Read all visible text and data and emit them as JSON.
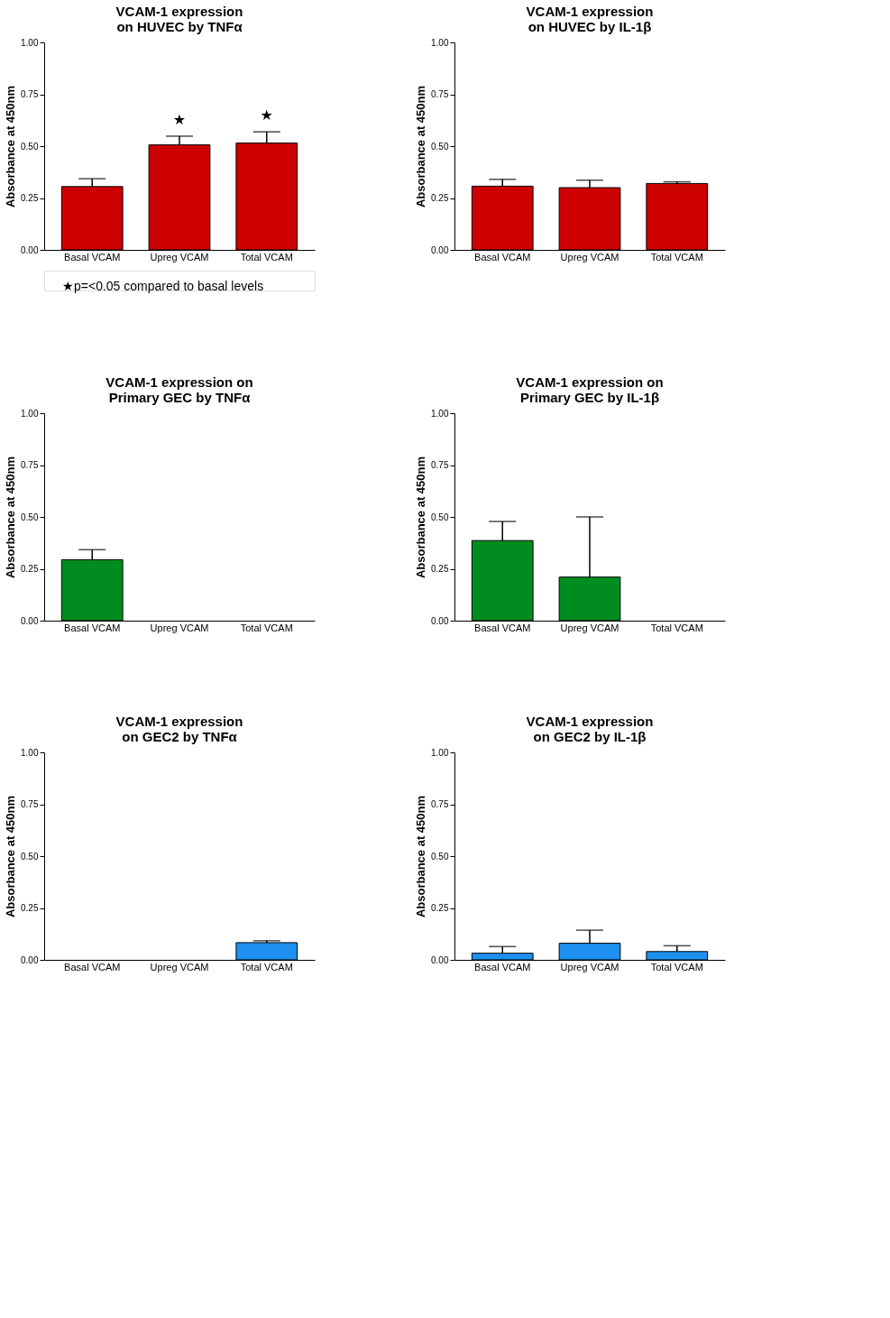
{
  "chart_data": [
    {
      "type": "bar",
      "title": "VCAM-1 expression on HUVEC by TNFα",
      "ylabel": "Absorbance at 450nm",
      "categories": [
        "Basal VCAM",
        "Upreg VCAM",
        "Total VCAM"
      ],
      "values": [
        0.305,
        0.506,
        0.515
      ],
      "errors": [
        [
          0.305,
          0.343
        ],
        [
          0.506,
          0.548
        ],
        [
          0.515,
          0.569
        ]
      ],
      "color": "#cc0000",
      "ylim": [
        0,
        1
      ],
      "yticks": [
        {
          "value": 0,
          "label": "0.00"
        },
        {
          "value": 0.25,
          "label": "0.25"
        },
        {
          "value": 0.5,
          "label": "0.50"
        },
        {
          "value": 0.75,
          "label": "0.75"
        },
        {
          "value": 1,
          "label": "1.00"
        }
      ],
      "grid": false,
      "annotations": [
        "★",
        "★",
        "★p=<0.05 compared to basal levels"
      ]
    },
    {
      "type": "bar",
      "title": "VCAM-1 expression on HUVEC by IL-1β",
      "ylabel": "Absorbance at 450nm",
      "categories": [
        "Basal VCAM",
        "Upreg VCAM",
        "Total VCAM"
      ],
      "values": [
        0.307,
        0.3,
        0.32
      ],
      "errors": [
        [
          0.307,
          0.34
        ],
        [
          0.3,
          0.336
        ],
        [
          0.32,
          0.328
        ]
      ],
      "color": "#cc0000",
      "ylim": [
        0,
        1
      ],
      "yticks": [
        {
          "value": 0,
          "label": "0.00"
        },
        {
          "value": 0.25,
          "label": "0.25"
        },
        {
          "value": 0.5,
          "label": "0.50"
        },
        {
          "value": 0.75,
          "label": "0.75"
        },
        {
          "value": 1,
          "label": "1.00"
        }
      ],
      "grid": false
    },
    {
      "type": "bar",
      "title": "VCAM-1 expression on Primary GEC by TNFα",
      "ylabel": "Absorbance at 450nm",
      "categories": [
        "Basal VCAM",
        "Upreg VCAM",
        "Total VCAM"
      ],
      "values": [
        0.294,
        null,
        null
      ],
      "errors": [
        [
          0.294,
          0.342
        ],
        null,
        null
      ],
      "color": "#008c1e",
      "ylim": [
        0,
        1
      ],
      "yticks": [
        {
          "value": 0,
          "label": "0.00"
        },
        {
          "value": 0.25,
          "label": "0.25"
        },
        {
          "value": 0.5,
          "label": "0.50"
        },
        {
          "value": 0.75,
          "label": "0.75"
        },
        {
          "value": 1,
          "label": "1.00"
        }
      ],
      "grid": false
    },
    {
      "type": "bar",
      "title": "VCAM-1 expression on Primary GEC by IL-1β",
      "ylabel": "Absorbance at 450nm",
      "categories": [
        "Basal VCAM",
        "Upreg VCAM",
        "Total VCAM"
      ],
      "values": [
        0.386,
        0.21,
        null
      ],
      "errors": [
        [
          0.386,
          0.478
        ],
        [
          0.21,
          0.5
        ],
        null
      ],
      "color": "#008c1e",
      "ylim": [
        0,
        1
      ],
      "yticks": [
        {
          "value": 0,
          "label": "0.00"
        },
        {
          "value": 0.25,
          "label": "0.25"
        },
        {
          "value": 0.5,
          "label": "0.50"
        },
        {
          "value": 0.75,
          "label": "0.75"
        },
        {
          "value": 1,
          "label": "1.00"
        }
      ],
      "grid": false
    },
    {
      "type": "bar",
      "title": "VCAM-1 expression on GEC2 by TNFα",
      "ylabel": "Absorbance at 450nm",
      "categories": [
        "Basal VCAM",
        "Upreg VCAM",
        "Total VCAM"
      ],
      "values": [
        null,
        null,
        0.083
      ],
      "errors": [
        null,
        null,
        [
          0.083,
          0.092
        ]
      ],
      "color": "#1e90ef",
      "ylim": [
        0,
        1
      ],
      "yticks": [
        {
          "value": 0,
          "label": "0.00"
        },
        {
          "value": 0.25,
          "label": "0.25"
        },
        {
          "value": 0.5,
          "label": "0.50"
        },
        {
          "value": 0.75,
          "label": "0.75"
        },
        {
          "value": 1,
          "label": "1.00"
        }
      ],
      "grid": false
    },
    {
      "type": "bar",
      "title": "VCAM-1 expression on GEC2 by IL-1β",
      "ylabel": "Absorbance at 450nm",
      "categories": [
        "Basal VCAM",
        "Upreg VCAM",
        "Total VCAM"
      ],
      "values": [
        0.032,
        0.08,
        0.04
      ],
      "errors": [
        [
          0.032,
          0.064
        ],
        [
          0.08,
          0.143
        ],
        [
          0.04,
          0.068
        ]
      ],
      "color": "#1e90ef",
      "ylim": [
        0,
        1
      ],
      "yticks": [
        {
          "value": 0,
          "label": "0.00"
        },
        {
          "value": 0.25,
          "label": "0.25"
        },
        {
          "value": 0.5,
          "label": "0.50"
        },
        {
          "value": 0.75,
          "label": "0.75"
        },
        {
          "value": 1,
          "label": "1.00"
        }
      ],
      "grid": false
    }
  ]
}
